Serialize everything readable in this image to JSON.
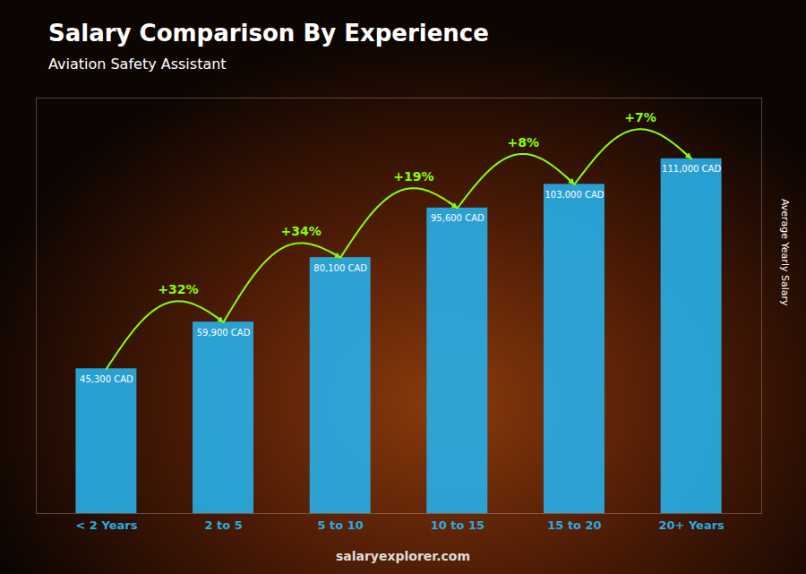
{
  "chart_data": {
    "type": "bar",
    "title": "Salary Comparison By Experience",
    "subtitle": "Aviation Safety Assistant",
    "ylabel": "Average Yearly Salary",
    "categories": [
      "< 2 Years",
      "2 to 5",
      "5 to 10",
      "10 to 15",
      "15 to 20",
      "20+ Years"
    ],
    "values": [
      45300,
      59900,
      80100,
      95600,
      103000,
      111000
    ],
    "value_labels": [
      "45,300 CAD",
      "59,900 CAD",
      "80,100 CAD",
      "95,600 CAD",
      "103,000 CAD",
      "111,000 CAD"
    ],
    "data_labels": true,
    "color": "#29ABE2",
    "ylim": [
      0,
      130000
    ],
    "tick_labels": "x",
    "grid": false,
    "annotations": [
      {
        "text": "+32%",
        "from": "< 2 Years",
        "to": "2 to 5",
        "color": "#88ff00"
      },
      {
        "text": "+34%",
        "from": "2 to 5",
        "to": "5 to 10",
        "color": "#88ff00"
      },
      {
        "text": "+19%",
        "from": "5 to 10",
        "to": "10 to 15",
        "color": "#88ff00"
      },
      {
        "text": "+8%",
        "from": "10 to 15",
        "to": "15 to 20",
        "color": "#88ff00"
      },
      {
        "text": "+7%",
        "from": "15 to 20",
        "to": "20+ Years",
        "color": "#88ff00"
      }
    ],
    "watermark": "salaryexplorer.com"
  }
}
